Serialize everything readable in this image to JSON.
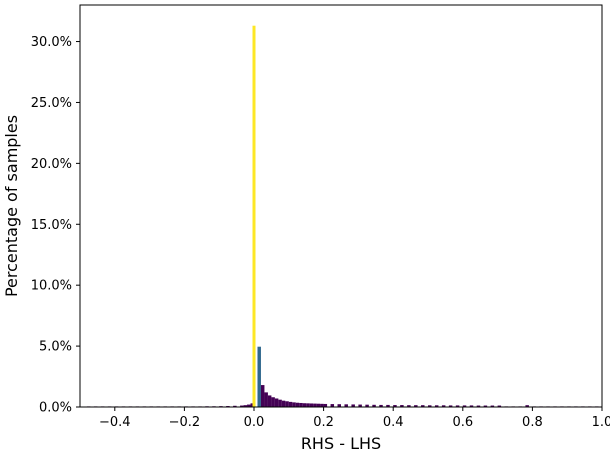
{
  "chart_data": {
    "type": "bar",
    "title": "",
    "xlabel": "RHS - LHS",
    "ylabel": "Percentage of samples",
    "xlim": [
      -0.5,
      1.0
    ],
    "ylim": [
      0,
      33
    ],
    "grid": false,
    "x_ticks": [
      -0.4,
      -0.2,
      0.0,
      0.2,
      0.4,
      0.6,
      0.8,
      1.0
    ],
    "x_tick_labels": [
      "−0.4",
      "−0.2",
      "0.0",
      "0.2",
      "0.4",
      "0.6",
      "0.8",
      "1.0"
    ],
    "y_ticks": [
      0,
      5,
      10,
      15,
      20,
      25,
      30
    ],
    "y_tick_labels": [
      "0.0%",
      "5.0%",
      "10.0%",
      "15.0%",
      "20.0%",
      "25.0%",
      "30.0%"
    ],
    "colors": {
      "bars": "#440154",
      "near_zero": "#31688e",
      "peak": "#fde725",
      "axes": "#000000"
    },
    "bin_width": 0.01,
    "bins": [
      {
        "x": -0.48,
        "y": 0.05
      },
      {
        "x": -0.46,
        "y": 0.05
      },
      {
        "x": -0.44,
        "y": 0.05
      },
      {
        "x": -0.42,
        "y": 0.05
      },
      {
        "x": -0.4,
        "y": 0.05
      },
      {
        "x": -0.38,
        "y": 0.05
      },
      {
        "x": -0.36,
        "y": 0.05
      },
      {
        "x": -0.34,
        "y": 0.05
      },
      {
        "x": -0.32,
        "y": 0.05
      },
      {
        "x": -0.3,
        "y": 0.05
      },
      {
        "x": -0.28,
        "y": 0.05
      },
      {
        "x": -0.26,
        "y": 0.05
      },
      {
        "x": -0.24,
        "y": 0.05
      },
      {
        "x": -0.22,
        "y": 0.05
      },
      {
        "x": -0.2,
        "y": 0.05
      },
      {
        "x": -0.18,
        "y": 0.05
      },
      {
        "x": -0.16,
        "y": 0.05
      },
      {
        "x": -0.14,
        "y": 0.06
      },
      {
        "x": -0.12,
        "y": 0.06
      },
      {
        "x": -0.1,
        "y": 0.07
      },
      {
        "x": -0.08,
        "y": 0.08
      },
      {
        "x": -0.06,
        "y": 0.1
      },
      {
        "x": -0.04,
        "y": 0.12
      },
      {
        "x": -0.03,
        "y": 0.15
      },
      {
        "x": -0.02,
        "y": 0.2
      },
      {
        "x": -0.01,
        "y": 0.3
      },
      {
        "x": 0.0,
        "y": 31.3
      },
      {
        "x": 0.01,
        "y": 4.95
      },
      {
        "x": 0.02,
        "y": 1.8
      },
      {
        "x": 0.03,
        "y": 1.2
      },
      {
        "x": 0.04,
        "y": 0.95
      },
      {
        "x": 0.05,
        "y": 0.8
      },
      {
        "x": 0.06,
        "y": 0.7
      },
      {
        "x": 0.07,
        "y": 0.6
      },
      {
        "x": 0.08,
        "y": 0.52
      },
      {
        "x": 0.09,
        "y": 0.47
      },
      {
        "x": 0.1,
        "y": 0.42
      },
      {
        "x": 0.11,
        "y": 0.38
      },
      {
        "x": 0.12,
        "y": 0.35
      },
      {
        "x": 0.13,
        "y": 0.33
      },
      {
        "x": 0.14,
        "y": 0.31
      },
      {
        "x": 0.15,
        "y": 0.3
      },
      {
        "x": 0.16,
        "y": 0.29
      },
      {
        "x": 0.17,
        "y": 0.28
      },
      {
        "x": 0.18,
        "y": 0.27
      },
      {
        "x": 0.19,
        "y": 0.26
      },
      {
        "x": 0.2,
        "y": 0.25
      },
      {
        "x": 0.22,
        "y": 0.24
      },
      {
        "x": 0.24,
        "y": 0.23
      },
      {
        "x": 0.26,
        "y": 0.22
      },
      {
        "x": 0.28,
        "y": 0.21
      },
      {
        "x": 0.3,
        "y": 0.2
      },
      {
        "x": 0.32,
        "y": 0.19
      },
      {
        "x": 0.34,
        "y": 0.18
      },
      {
        "x": 0.36,
        "y": 0.17
      },
      {
        "x": 0.38,
        "y": 0.17
      },
      {
        "x": 0.4,
        "y": 0.16
      },
      {
        "x": 0.42,
        "y": 0.16
      },
      {
        "x": 0.44,
        "y": 0.15
      },
      {
        "x": 0.46,
        "y": 0.15
      },
      {
        "x": 0.48,
        "y": 0.15
      },
      {
        "x": 0.5,
        "y": 0.14
      },
      {
        "x": 0.52,
        "y": 0.14
      },
      {
        "x": 0.54,
        "y": 0.14
      },
      {
        "x": 0.56,
        "y": 0.13
      },
      {
        "x": 0.58,
        "y": 0.13
      },
      {
        "x": 0.6,
        "y": 0.13
      },
      {
        "x": 0.62,
        "y": 0.13
      },
      {
        "x": 0.64,
        "y": 0.12
      },
      {
        "x": 0.66,
        "y": 0.12
      },
      {
        "x": 0.68,
        "y": 0.12
      },
      {
        "x": 0.7,
        "y": 0.12
      },
      {
        "x": 0.72,
        "y": 0.05
      },
      {
        "x": 0.74,
        "y": 0.05
      },
      {
        "x": 0.76,
        "y": 0.05
      },
      {
        "x": 0.78,
        "y": 0.15
      },
      {
        "x": 0.8,
        "y": 0.05
      },
      {
        "x": 0.82,
        "y": 0.05
      },
      {
        "x": 0.84,
        "y": 0.05
      },
      {
        "x": 0.86,
        "y": 0.05
      },
      {
        "x": 0.88,
        "y": 0.05
      },
      {
        "x": 0.9,
        "y": 0.05
      },
      {
        "x": 0.92,
        "y": 0.05
      },
      {
        "x": 0.94,
        "y": 0.05
      },
      {
        "x": 0.96,
        "y": 0.05
      },
      {
        "x": 0.98,
        "y": 0.05
      }
    ]
  }
}
